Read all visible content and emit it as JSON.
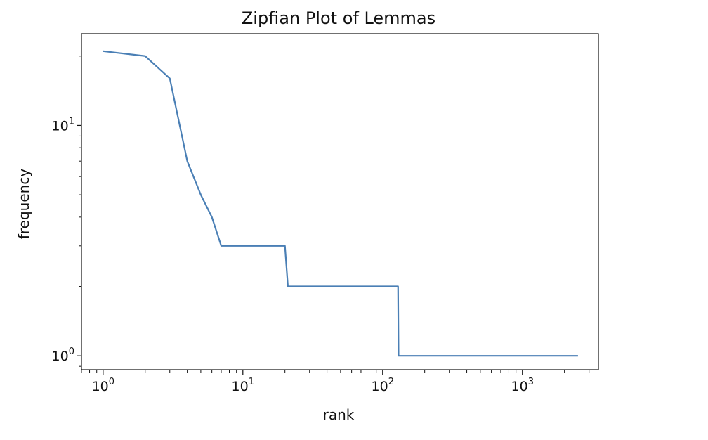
{
  "chart_data": {
    "type": "line",
    "title": "Zipfian Plot of Lemmas",
    "xlabel": "rank",
    "ylabel": "frequency",
    "xscale": "log",
    "yscale": "log",
    "xlim": [
      0.7,
      3500
    ],
    "ylim": [
      0.87,
      25
    ],
    "grid": false,
    "legend": "none",
    "line_color": "#4a7fb5",
    "x_ticks": [
      {
        "value": 1,
        "base": "10",
        "exp": "0"
      },
      {
        "value": 10,
        "base": "10",
        "exp": "1"
      },
      {
        "value": 100,
        "base": "10",
        "exp": "2"
      },
      {
        "value": 1000,
        "base": "10",
        "exp": "3"
      }
    ],
    "y_ticks": [
      {
        "value": 1,
        "base": "10",
        "exp": "0"
      },
      {
        "value": 10,
        "base": "10",
        "exp": "1"
      }
    ],
    "series": [
      {
        "x": [
          1,
          2,
          3,
          4,
          5,
          6,
          7,
          20,
          21,
          129,
          130,
          2500
        ],
        "y": [
          21,
          20,
          16,
          7,
          5,
          4,
          3,
          3,
          2,
          2,
          1,
          1
        ]
      }
    ]
  }
}
